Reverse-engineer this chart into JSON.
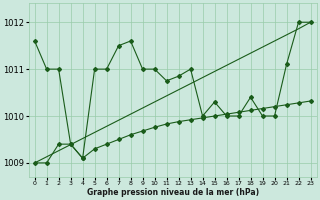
{
  "xlabel": "Graphe pression niveau de la mer (hPa)",
  "hours": [
    0,
    1,
    2,
    3,
    4,
    5,
    6,
    7,
    8,
    9,
    10,
    11,
    12,
    13,
    14,
    15,
    16,
    17,
    18,
    19,
    20,
    21,
    22,
    23
  ],
  "y_jagged": [
    1011.6,
    1011.0,
    1011.0,
    1009.4,
    1009.1,
    1011.0,
    1011.0,
    1011.5,
    1011.6,
    1011.0,
    1011.0,
    1010.75,
    1010.85,
    1011.0,
    1010.0,
    1010.3,
    1010.0,
    1010.0,
    1010.4,
    1010.0,
    1010.0,
    1011.1,
    1012.0,
    1012.0
  ],
  "y_lower": [
    1009.0,
    1009.0,
    1009.4,
    1009.4,
    1009.1,
    1009.3,
    1009.4,
    1009.5,
    1009.6,
    1009.68,
    1009.76,
    1009.83,
    1009.88,
    1009.92,
    1009.96,
    1010.0,
    1010.04,
    1010.08,
    1010.12,
    1010.16,
    1010.2,
    1010.24,
    1010.28,
    1010.32
  ],
  "y_straight": [
    1009.0,
    1009.13,
    1009.26,
    1009.39,
    1009.52,
    1009.65,
    1009.78,
    1009.91,
    1010.04,
    1010.17,
    1010.3,
    1010.43,
    1010.56,
    1010.69,
    1010.82,
    1010.95,
    1011.08,
    1011.21,
    1011.34,
    1011.47,
    1011.6,
    1011.73,
    1011.86,
    1012.0
  ],
  "bg_color": "#cce8dd",
  "grid_color": "#99ccaa",
  "line_color": "#1a5c1a",
  "ylim": [
    1008.7,
    1012.4
  ],
  "yticks": [
    1009,
    1010,
    1011,
    1012
  ],
  "xlim": [
    -0.5,
    23.5
  ]
}
